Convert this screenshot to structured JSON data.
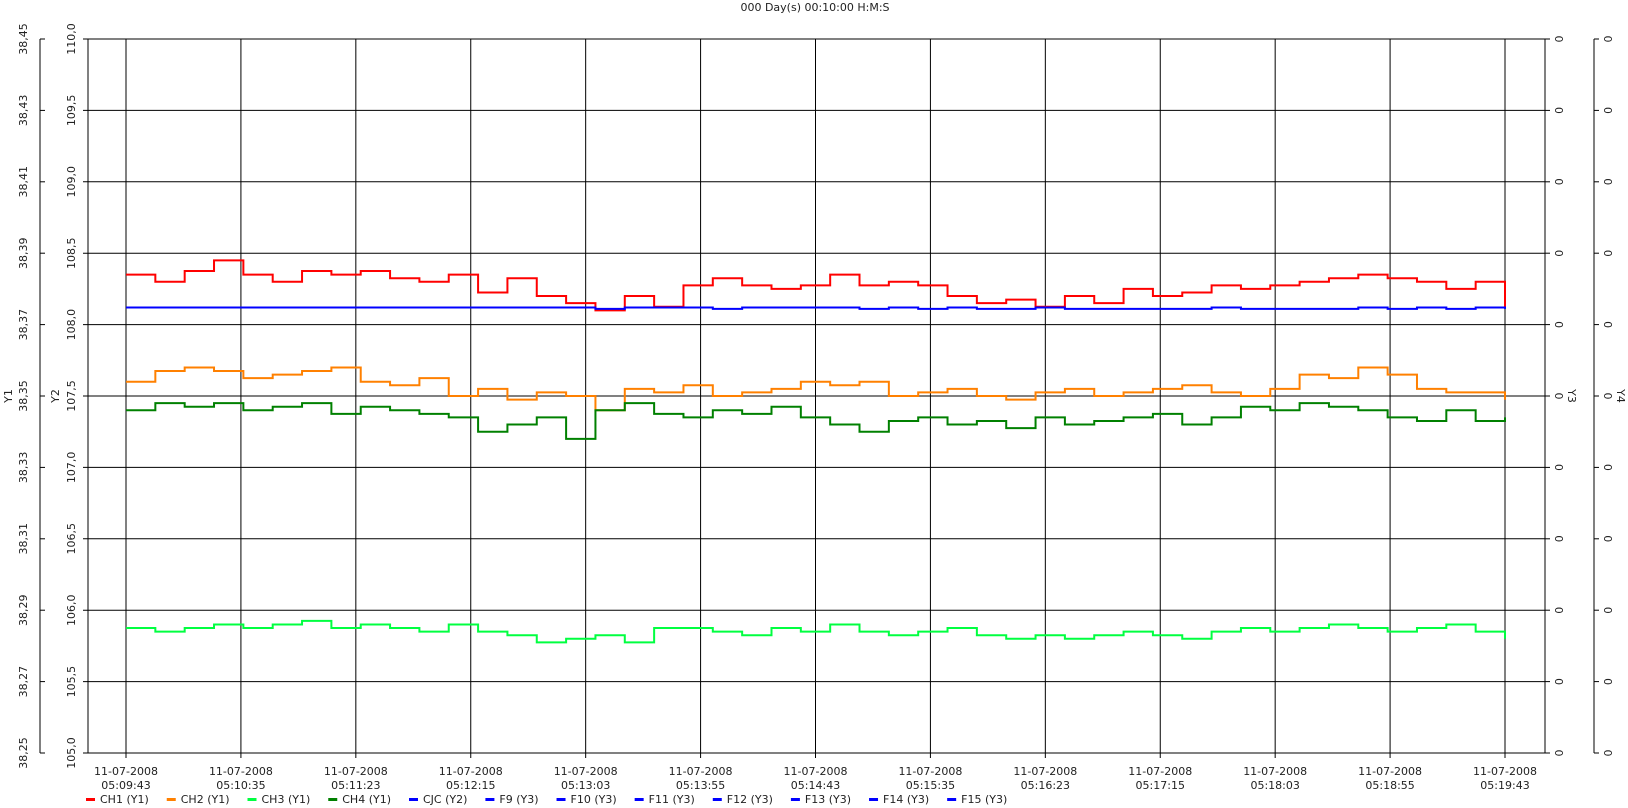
{
  "chart_data": {
    "type": "line",
    "title": "000 Day(s) 00:10:00 H:M:S",
    "y1_label": "Y1",
    "y2_label": "Y2",
    "y3_label": "Y3",
    "y4_label": "Y4",
    "ylim": [
      38.25,
      38.45
    ],
    "yticks": [
      {
        "value": 38.25,
        "label": "38,25"
      },
      {
        "value": 38.27,
        "label": "38,27"
      },
      {
        "value": 38.29,
        "label": "38,29"
      },
      {
        "value": 38.31,
        "label": "38,31"
      },
      {
        "value": 38.33,
        "label": "38,33"
      },
      {
        "value": 38.35,
        "label": "38,35"
      },
      {
        "value": 38.37,
        "label": "38,37"
      },
      {
        "value": 38.39,
        "label": "38,39"
      },
      {
        "value": 38.41,
        "label": "38,41"
      },
      {
        "value": 38.43,
        "label": "38,43"
      },
      {
        "value": 38.45,
        "label": "38,45"
      }
    ],
    "y2lim": [
      105.0,
      110.0
    ],
    "y2ticks": [
      {
        "value": 105.0,
        "label": "105,0"
      },
      {
        "value": 105.5,
        "label": "105,5"
      },
      {
        "value": 106.0,
        "label": "106,0"
      },
      {
        "value": 106.5,
        "label": "106,5"
      },
      {
        "value": 107.0,
        "label": "107,0"
      },
      {
        "value": 107.5,
        "label": "107,5"
      },
      {
        "value": 108.0,
        "label": "108,0"
      },
      {
        "value": 108.5,
        "label": "108,5"
      },
      {
        "value": 109.0,
        "label": "109,0"
      },
      {
        "value": 109.5,
        "label": "109,5"
      },
      {
        "value": 110.0,
        "label": "110,0"
      }
    ],
    "y3_tick_labels": [
      "0",
      "0",
      "0",
      "0",
      "0",
      "0",
      "0",
      "0",
      "0",
      "0",
      "0"
    ],
    "y4_tick_labels": [
      "0",
      "0",
      "0",
      "0",
      "0",
      "0",
      "0",
      "0",
      "0",
      "0",
      "0"
    ],
    "xticks": [
      {
        "date": "11-07-2008",
        "time": "05:09:43"
      },
      {
        "date": "11-07-2008",
        "time": "05:10:35"
      },
      {
        "date": "11-07-2008",
        "time": "05:11:23"
      },
      {
        "date": "11-07-2008",
        "time": "05:12:15"
      },
      {
        "date": "11-07-2008",
        "time": "05:13:03"
      },
      {
        "date": "11-07-2008",
        "time": "05:13:55"
      },
      {
        "date": "11-07-2008",
        "time": "05:14:43"
      },
      {
        "date": "11-07-2008",
        "time": "05:15:35"
      },
      {
        "date": "11-07-2008",
        "time": "05:16:23"
      },
      {
        "date": "11-07-2008",
        "time": "05:17:15"
      },
      {
        "date": "11-07-2008",
        "time": "05:18:03"
      },
      {
        "date": "11-07-2008",
        "time": "05:18:55"
      },
      {
        "date": "11-07-2008",
        "time": "05:19:43"
      }
    ],
    "grid": true,
    "series": [
      {
        "name": "CH1 (Y1)",
        "color": "#ff0000",
        "axis": "y1",
        "values": [
          38.384,
          38.382,
          38.385,
          38.388,
          38.384,
          38.382,
          38.385,
          38.384,
          38.385,
          38.383,
          38.382,
          38.384,
          38.379,
          38.383,
          38.378,
          38.376,
          38.374,
          38.378,
          38.375,
          38.381,
          38.383,
          38.381,
          38.38,
          38.381,
          38.384,
          38.381,
          38.382,
          38.381,
          38.378,
          38.376,
          38.377,
          38.375,
          38.378,
          38.376,
          38.38,
          38.378,
          38.379,
          38.381,
          38.38,
          38.381,
          38.382,
          38.383,
          38.384,
          38.383,
          38.382,
          38.38,
          38.382,
          38.375
        ]
      },
      {
        "name": "CH2 (Y1)",
        "color": "#ff8000",
        "axis": "y1",
        "values": [
          38.354,
          38.357,
          38.358,
          38.357,
          38.355,
          38.356,
          38.357,
          38.358,
          38.354,
          38.353,
          38.355,
          38.35,
          38.352,
          38.349,
          38.351,
          38.35,
          38.346,
          38.352,
          38.351,
          38.353,
          38.35,
          38.351,
          38.352,
          38.354,
          38.353,
          38.354,
          38.35,
          38.351,
          38.352,
          38.35,
          38.349,
          38.351,
          38.352,
          38.35,
          38.351,
          38.352,
          38.353,
          38.351,
          38.35,
          38.352,
          38.356,
          38.355,
          38.358,
          38.356,
          38.352,
          38.351,
          38.351,
          38.349
        ]
      },
      {
        "name": "CH3 (Y1)",
        "color": "#00ff40",
        "axis": "y1",
        "values": [
          38.285,
          38.284,
          38.285,
          38.286,
          38.285,
          38.286,
          38.287,
          38.285,
          38.286,
          38.285,
          38.284,
          38.286,
          38.284,
          38.283,
          38.281,
          38.282,
          38.283,
          38.281,
          38.285,
          38.285,
          38.284,
          38.283,
          38.285,
          38.284,
          38.286,
          38.284,
          38.283,
          38.284,
          38.285,
          38.283,
          38.282,
          38.283,
          38.282,
          38.283,
          38.284,
          38.283,
          38.282,
          38.284,
          38.285,
          38.284,
          38.285,
          38.286,
          38.285,
          38.284,
          38.285,
          38.286,
          38.284,
          38.282
        ]
      },
      {
        "name": "CH4 (Y1)",
        "color": "#008000",
        "axis": "y1",
        "values": [
          38.346,
          38.348,
          38.347,
          38.348,
          38.346,
          38.347,
          38.348,
          38.345,
          38.347,
          38.346,
          38.345,
          38.344,
          38.34,
          38.342,
          38.344,
          38.338,
          38.346,
          38.348,
          38.345,
          38.344,
          38.346,
          38.345,
          38.347,
          38.344,
          38.342,
          38.34,
          38.343,
          38.344,
          38.342,
          38.343,
          38.341,
          38.344,
          38.342,
          38.343,
          38.344,
          38.345,
          38.342,
          38.344,
          38.347,
          38.346,
          38.348,
          38.347,
          38.346,
          38.344,
          38.343,
          38.346,
          38.343,
          38.344
        ]
      },
      {
        "name": "CJC (Y2)",
        "color": "#0000ff",
        "axis": "y2",
        "values": [
          108.12,
          108.12,
          108.12,
          108.12,
          108.12,
          108.12,
          108.12,
          108.12,
          108.12,
          108.12,
          108.12,
          108.12,
          108.12,
          108.12,
          108.12,
          108.12,
          108.11,
          108.12,
          108.12,
          108.12,
          108.11,
          108.12,
          108.12,
          108.12,
          108.12,
          108.11,
          108.12,
          108.11,
          108.12,
          108.11,
          108.11,
          108.12,
          108.11,
          108.11,
          108.11,
          108.11,
          108.11,
          108.12,
          108.11,
          108.11,
          108.11,
          108.11,
          108.12,
          108.11,
          108.12,
          108.11,
          108.12,
          108.11
        ]
      },
      {
        "name": "F9 (Y3)",
        "color": "#0000ff",
        "axis": "y3",
        "values": []
      },
      {
        "name": "F10 (Y3)",
        "color": "#0000ff",
        "axis": "y3",
        "values": []
      },
      {
        "name": "F11 (Y3)",
        "color": "#0000ff",
        "axis": "y3",
        "values": []
      },
      {
        "name": "F12 (Y3)",
        "color": "#0000ff",
        "axis": "y3",
        "values": []
      },
      {
        "name": "F13 (Y3)",
        "color": "#0000ff",
        "axis": "y3",
        "values": []
      },
      {
        "name": "F14 (Y3)",
        "color": "#0000ff",
        "axis": "y3",
        "values": []
      },
      {
        "name": "F15 (Y3)",
        "color": "#0000ff",
        "axis": "y3",
        "values": []
      }
    ]
  }
}
